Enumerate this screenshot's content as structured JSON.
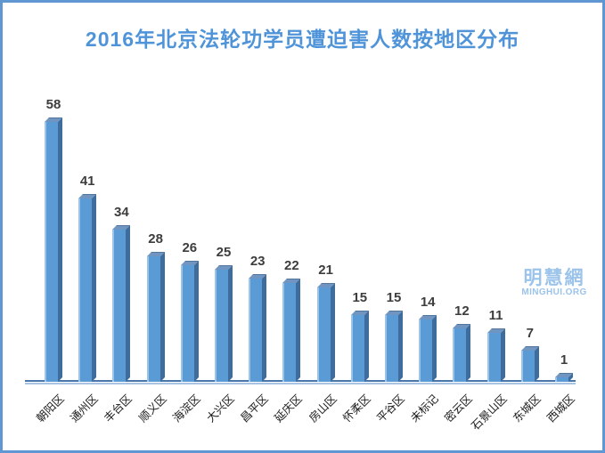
{
  "title": "2016年北京法轮功学员遭迫害人数按地区分布",
  "watermark": {
    "logo_text": "明慧網",
    "site_text": "MINGHUI.ORG",
    "color": "#9cc3ea"
  },
  "colors": {
    "frame_border": "#6097d3",
    "title": "#4f94d9",
    "bar_front": "#5b9bd5",
    "bar_top": "#7095c1",
    "bar_side": "#3e6d9d",
    "bar_highlight": "#9cc3e8",
    "axis_line_dark": "#4a77ab",
    "axis_line_light": "#a9c4e3",
    "value_label": "#3d3d3d",
    "tick_label": "#1a1a1a"
  },
  "chart_data": {
    "type": "bar",
    "title": "2016年北京法轮功学员遭迫害人数按地区分布",
    "categories": [
      "朝阳区",
      "通州区",
      "丰台区",
      "顺义区",
      "海淀区",
      "大兴区",
      "昌平区",
      "延庆区",
      "房山区",
      "怀柔区",
      "平谷区",
      "未标记",
      "密云区",
      "石景山区",
      "东城区",
      "西城区"
    ],
    "values": [
      58,
      41,
      34,
      28,
      26,
      25,
      23,
      22,
      21,
      15,
      15,
      14,
      12,
      11,
      7,
      1
    ],
    "xlabel": "",
    "ylabel": "",
    "ylim": [
      0,
      60
    ],
    "grid": false,
    "legend": false,
    "style": "3d-column",
    "value_labels_shown": true,
    "tick_label_rotation_deg": -45
  }
}
